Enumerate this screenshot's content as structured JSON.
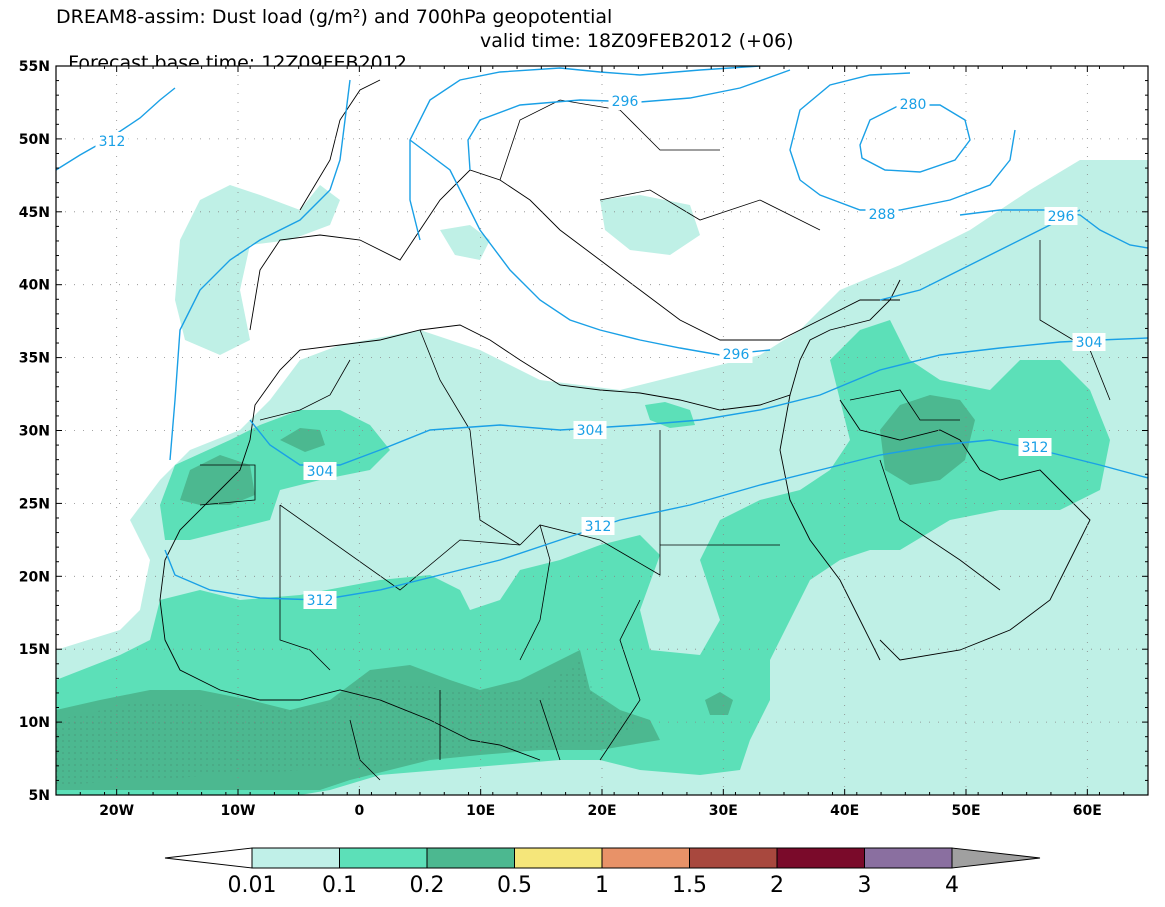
{
  "title": {
    "line1": "DREAM8-assim: Dust load (g/m²) and 700hPa geopotential",
    "base_time": "Forecast base time: 12Z09FEB2012",
    "valid_time": "valid time: 18Z09FEB2012 (+06)"
  },
  "map": {
    "lon_range": [
      -25,
      65
    ],
    "lat_range": [
      5,
      55
    ],
    "lat_ticks": [
      {
        "value": 55,
        "label": "55N"
      },
      {
        "value": 50,
        "label": "50N"
      },
      {
        "value": 45,
        "label": "45N"
      },
      {
        "value": 40,
        "label": "40N"
      },
      {
        "value": 35,
        "label": "35N"
      },
      {
        "value": 30,
        "label": "30N"
      },
      {
        "value": 25,
        "label": "25N"
      },
      {
        "value": 20,
        "label": "20N"
      },
      {
        "value": 15,
        "label": "15N"
      },
      {
        "value": 10,
        "label": "10N"
      },
      {
        "value": 5,
        "label": "5N"
      }
    ],
    "lon_ticks": [
      {
        "value": -20,
        "label": "20W"
      },
      {
        "value": -10,
        "label": "10W"
      },
      {
        "value": 0,
        "label": "0"
      },
      {
        "value": 10,
        "label": "10E"
      },
      {
        "value": 20,
        "label": "20E"
      },
      {
        "value": 30,
        "label": "30E"
      },
      {
        "value": 40,
        "label": "40E"
      },
      {
        "value": 50,
        "label": "50E"
      },
      {
        "value": 60,
        "label": "60E"
      }
    ],
    "contour_color": "#1aa0e6",
    "contour_labels": [
      "312",
      "296",
      "280",
      "288",
      "296",
      "304",
      "304",
      "312",
      "312",
      "296",
      "304",
      "312"
    ],
    "fill_colors": {
      "level_0_01": "#bff0e6",
      "level_0_1": "#5ce0b8",
      "level_0_2": "#4cb890",
      "level_0_5": "#459575"
    }
  },
  "colorbar": {
    "labels": [
      "0.01",
      "0.1",
      "0.2",
      "0.5",
      "1",
      "1.5",
      "2",
      "3",
      "4"
    ],
    "colors": [
      "#c0f0e8",
      "#5ce0b8",
      "#4cb890",
      "#f5e67a",
      "#e89268",
      "#a8483e",
      "#7a0a2a",
      "#8a6fa0"
    ],
    "under_color": "#ffffff",
    "over_color": "#a0a0a0"
  }
}
